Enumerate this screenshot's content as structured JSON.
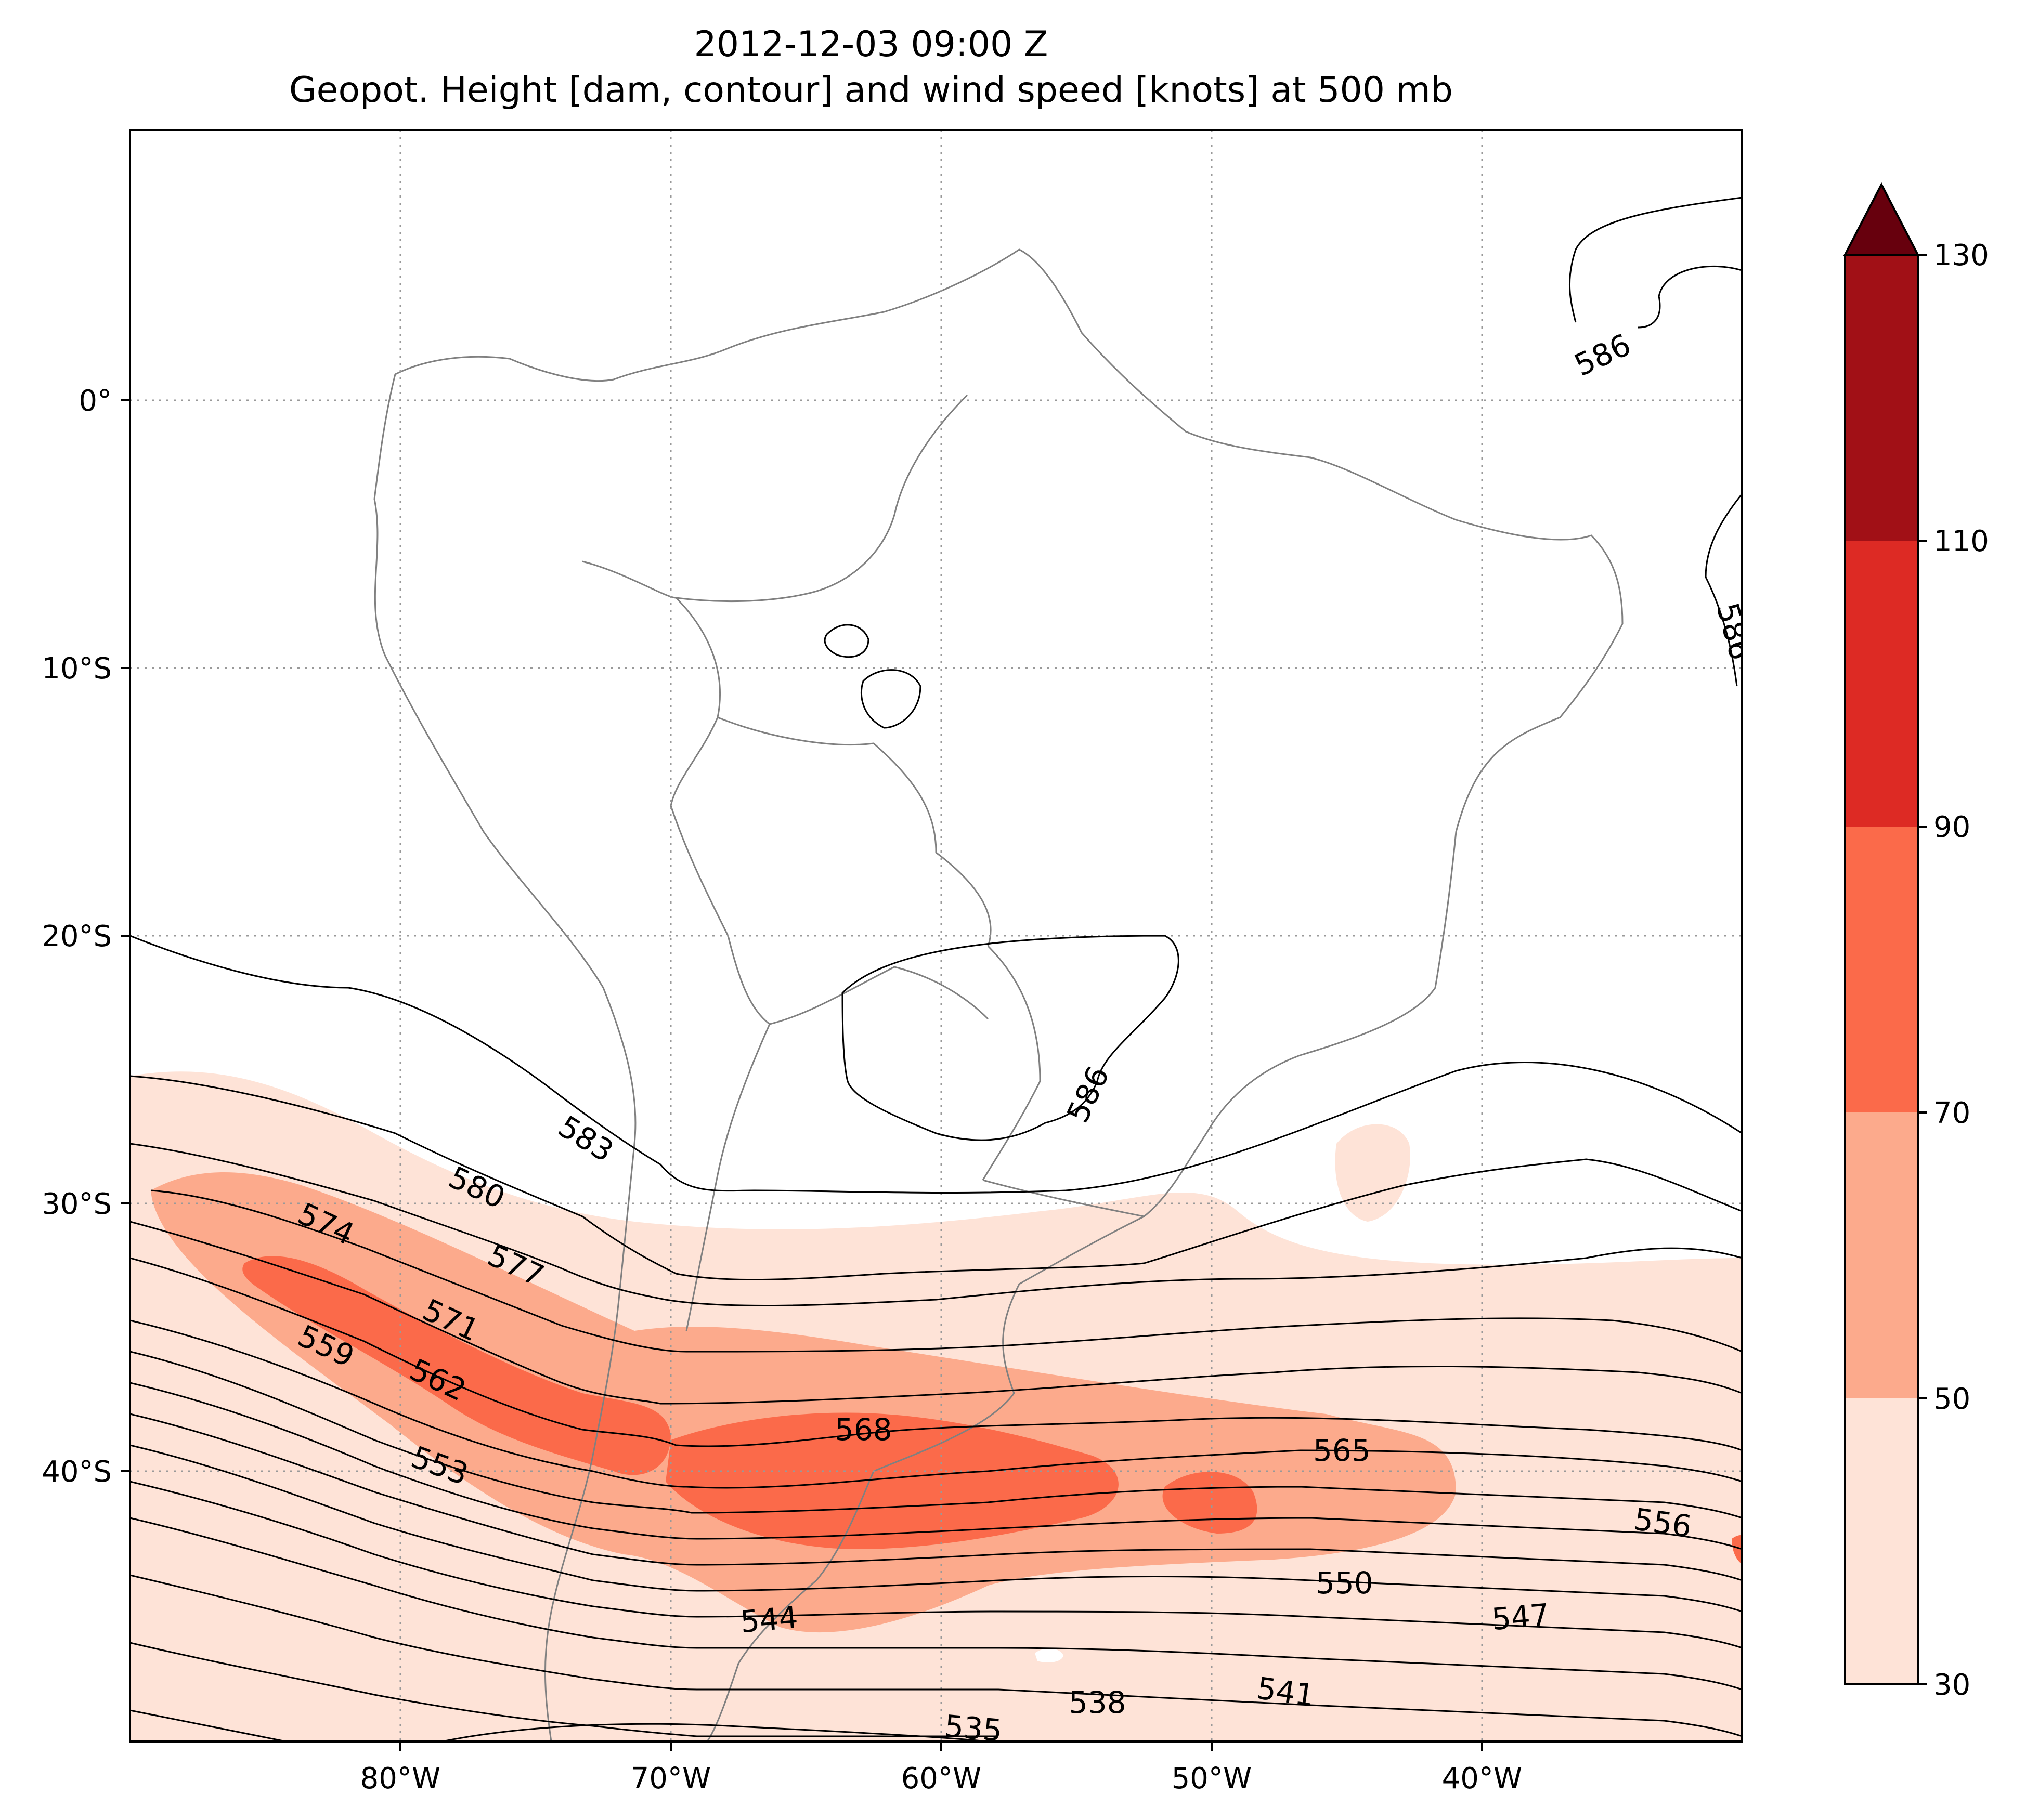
{
  "title": {
    "line1": "2012-12-03 09:00 Z",
    "line2": "Geopot. Height [dam, contour] and wind speed [knots] at 500 mb"
  },
  "map": {
    "longitude_labels": [
      "80°W",
      "70°W",
      "60°W",
      "50°W",
      "40°W"
    ],
    "latitude_labels": [
      "0°",
      "10°S",
      "20°S",
      "30°S",
      "40°S"
    ],
    "contour_labels": [
      {
        "id": "c586a",
        "text": "586"
      },
      {
        "id": "c586b",
        "text": "586"
      },
      {
        "id": "c586c",
        "text": "586"
      },
      {
        "id": "c583",
        "text": "583"
      },
      {
        "id": "c580",
        "text": "580"
      },
      {
        "id": "c577",
        "text": "577"
      },
      {
        "id": "c574",
        "text": "574"
      },
      {
        "id": "c571",
        "text": "571"
      },
      {
        "id": "c568",
        "text": "568"
      },
      {
        "id": "c565",
        "text": "565"
      },
      {
        "id": "c562",
        "text": "562"
      },
      {
        "id": "c559",
        "text": "559"
      },
      {
        "id": "c556",
        "text": "556"
      },
      {
        "id": "c553",
        "text": "553"
      },
      {
        "id": "c550",
        "text": "550"
      },
      {
        "id": "c547",
        "text": "547"
      },
      {
        "id": "c544",
        "text": "544"
      },
      {
        "id": "c541",
        "text": "541"
      },
      {
        "id": "c538",
        "text": "538"
      },
      {
        "id": "c535",
        "text": "535"
      }
    ],
    "colors": {
      "coastline": "#808080",
      "gridline": "#999999",
      "contour": "#000000"
    }
  },
  "colorbar": {
    "tick_labels": [
      "30",
      "50",
      "70",
      "90",
      "110",
      "130"
    ],
    "levels": [
      30,
      50,
      70,
      90,
      110,
      130
    ],
    "bin_colors": [
      "#fee3d7",
      "#fcaa8c",
      "#fb6a4a",
      "#dd2a24",
      "#a11016"
    ],
    "extend_color": "#67000d"
  }
}
